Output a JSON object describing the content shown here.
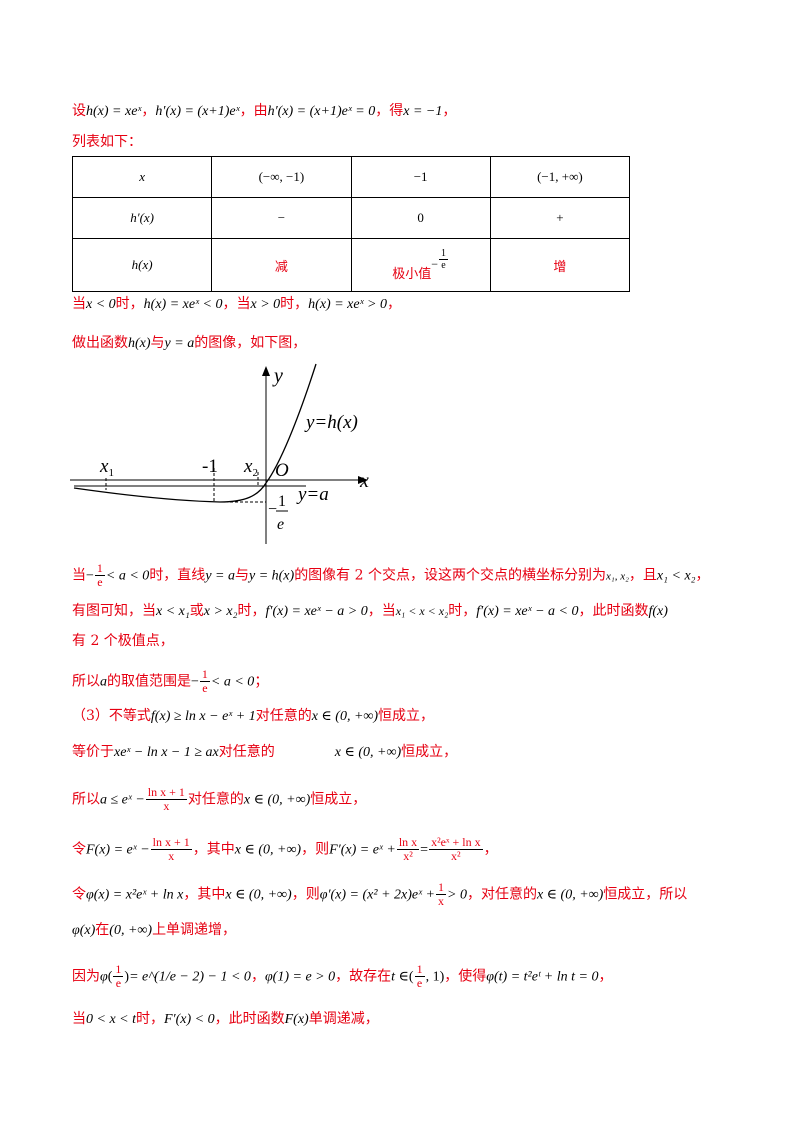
{
  "line1": {
    "lead": "设",
    "h_def": "h(x) = xeˣ",
    "comma1": "，",
    "hprime_def": "h′(x) = (x+1)eˣ",
    "comma2": "，由",
    "hprime_eq": "h′(x) = (x+1)eˣ = 0",
    "comma3": "，得",
    "root": "x = −1",
    "end": "，"
  },
  "line2": "列表如下：",
  "table": {
    "rows": [
      [
        "x",
        "(−∞, −1)",
        "−1",
        "(−1, +∞)"
      ],
      [
        "h′(x)",
        "−",
        "0",
        "+"
      ],
      [
        "h(x)",
        "减",
        "极小值",
        "增"
      ]
    ],
    "min_value_num": "1",
    "min_value_den": "e",
    "min_value_sign": "−"
  },
  "line3": {
    "a": "当",
    "b": "x < 0",
    "c": "时，",
    "d": "h(x) = xeˣ < 0",
    "e": "，当",
    "f": "x > 0",
    "g": "时，",
    "h": "h(x) = xeˣ > 0",
    "i": "，"
  },
  "line4": {
    "a": "做出函数",
    "b": "h(x)",
    "c": "与",
    "d": "y = a",
    "e": "的图像，如下图，"
  },
  "graph": {
    "y_axis": "y",
    "x_axis": "x",
    "origin": "O",
    "curve_label": "y=h(x)",
    "line_label": "y=a",
    "tick_neg1": "-1",
    "x1": "x",
    "x1_sub": "1",
    "x2": "x",
    "x2_sub": "2",
    "level_num": "1",
    "level_den": "e",
    "level_sign": "−"
  },
  "line5": {
    "a": "当",
    "frac_sign": "−",
    "frac_num": "1",
    "frac_den": "e",
    "b": "< a < 0",
    "c": "时，直线",
    "d": "y = a",
    "e": "与",
    "f": "y = h(x)",
    "g": "的图像有 2 个交点，设这两个交点的横坐标分别为",
    "h": "x₁, x₂",
    "i": "，且",
    "j": "x₁ < x₂",
    "k": "，"
  },
  "line6": {
    "a": "有图可知，当",
    "b": "x < x₁",
    "c": "或",
    "d": "x > x₂",
    "e": "时，",
    "f": "f′(x) = xeˣ − a > 0",
    "g": "，当",
    "h": "x₁ < x < x₂",
    "i": "时，",
    "j": "f′(x) = xeˣ − a < 0",
    "k": "，此时函数",
    "l": "f(x)"
  },
  "line7": "有 2 个极值点，",
  "line8": {
    "a": "所以",
    "b": "a",
    "c": "的取值范围是",
    "frac_sign": "−",
    "frac_num": "1",
    "frac_den": "e",
    "d": "< a < 0",
    "e": "；"
  },
  "line9": {
    "a": "（3）不等式",
    "b": "f(x) ≥ ln x − eˣ + 1",
    "c": "对任意的",
    "d": "x ∈ (0, +∞)",
    "e": "恒成立，"
  },
  "line10": {
    "a": "等价于",
    "b": "xeˣ − ln x − 1 ≥ ax",
    "c": "对任意的",
    "d": "x ∈ (0, +∞)",
    "e": "恒成立，"
  },
  "line11": {
    "a": "所以",
    "b": "a ≤ eˣ −",
    "frac_num": "ln x + 1",
    "frac_den": "x",
    "c": "对任意的",
    "d": "x ∈ (0, +∞)",
    "e": "恒成立，"
  },
  "line12": {
    "a": "令",
    "b": "F(x) = eˣ −",
    "frac_num": "ln x + 1",
    "frac_den": "x",
    "c": "，其中",
    "d": "x ∈ (0, +∞)",
    "e": "，则",
    "f": "F′(x) = eˣ +",
    "frac2_num": "ln x",
    "frac2_den": "x²",
    "g": "=",
    "frac3_num": "x²eˣ + ln x",
    "frac3_den": "x²",
    "h": "，"
  },
  "line13": {
    "a": "令",
    "b": "φ(x) = x²eˣ + ln x",
    "c": "，其中",
    "d": "x ∈ (0, +∞)",
    "e": "，则",
    "f": "φ′(x) = (x² + 2x)eˣ +",
    "frac_num": "1",
    "frac_den": "x",
    "g": "> 0",
    "h": "，对任意的",
    "i": "x ∈ (0, +∞)",
    "j": "恒成立，所以"
  },
  "line14": {
    "a": "φ(x)",
    "b": "在",
    "c": "(0, +∞)",
    "d": "上单调递增，"
  },
  "line15": {
    "a": "因为",
    "b": "φ",
    "frac_num": "1",
    "frac_den": "e",
    "c": "= e^(1/e − 2) − 1 < 0",
    "d": "，",
    "e": "φ(1) = e > 0",
    "f": "，故存在",
    "g": "t ∈",
    "frac2_num": "1",
    "frac2_den": "e",
    "h": ", 1",
    "i": "，使得",
    "j": "φ(t) = t²eᵗ + ln t = 0",
    "k": "，"
  },
  "line16": {
    "a": "当",
    "b": "0 < x < t",
    "c": "时，",
    "d": "F′(x) < 0",
    "e": "，此时函数",
    "f": "F(x)",
    "g": "单调递减，"
  }
}
